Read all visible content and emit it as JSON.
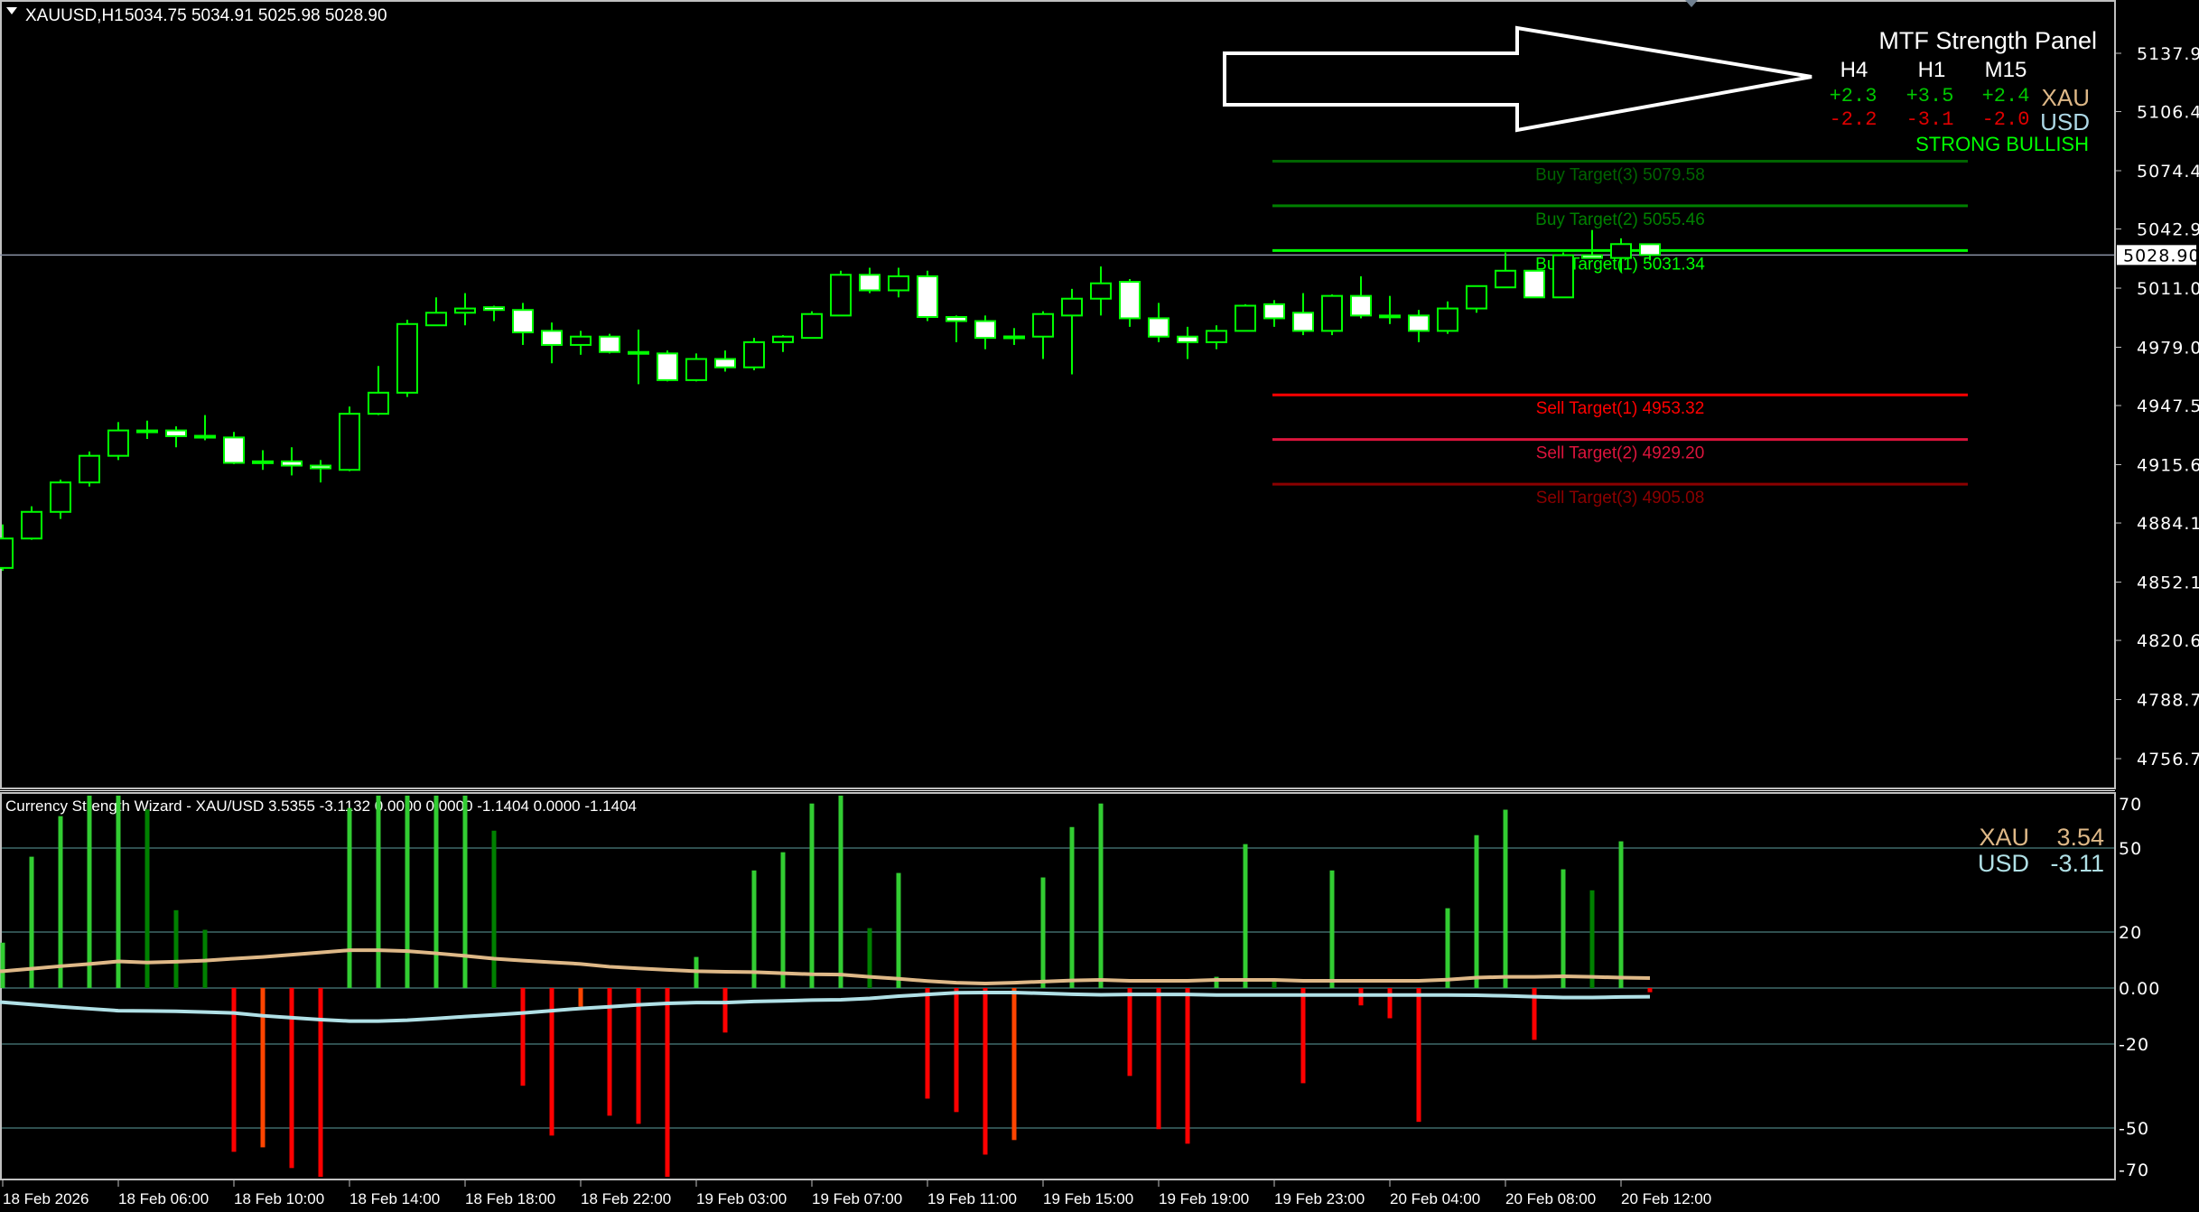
{
  "header": {
    "symbol": "XAUUSD,H1",
    "ohlc_text": "5034.75 5034.91 5025.98 5028.90"
  },
  "mtf_panel": {
    "title": "MTF Strength Panel",
    "timeframes": [
      "H4",
      "H1",
      "M15"
    ],
    "xau_label": "XAU",
    "usd_label": "USD",
    "xau_values": [
      "+2.3",
      "+3.5",
      "+2.4"
    ],
    "usd_values": [
      "-2.2",
      "-3.1",
      "-2.0"
    ],
    "verdict": "STRONG BULLISH",
    "colors": {
      "positive": "#00c800",
      "negative": "#e00000",
      "xau": "#deb887",
      "usd": "#add8e6",
      "verdict": "#00ff00"
    }
  },
  "targets": [
    {
      "label": "Buy Target(3) 5079.58",
      "price": 5079.58,
      "color": "#006400"
    },
    {
      "label": "Buy Target(2) 5055.46",
      "price": 5055.46,
      "color": "#008000"
    },
    {
      "label": "Buy Target(1) 5031.34",
      "price": 5031.34,
      "color": "#00ff00"
    },
    {
      "label": "Sell Target(1) 4953.32",
      "price": 4953.32,
      "color": "#ff0000"
    },
    {
      "label": "Sell Target(2) 4929.20",
      "price": 4929.2,
      "color": "#dc143c"
    },
    {
      "label": "Sell Target(3) 4905.08",
      "price": 4905.08,
      "color": "#8b0000"
    }
  ],
  "price_axis": {
    "ticks": [
      "5137.90",
      "5106.40",
      "5074.45",
      "5042.95",
      "5011.00",
      "4979.05",
      "4947.55",
      "4915.60",
      "4884.10",
      "4852.15",
      "4820.65",
      "4788.70",
      "4756.75"
    ],
    "current_price": "5028.90"
  },
  "time_axis": {
    "labels": [
      "18 Feb 2026",
      "18 Feb 06:00",
      "18 Feb 10:00",
      "18 Feb 14:00",
      "18 Feb 18:00",
      "18 Feb 22:00",
      "19 Feb 03:00",
      "19 Feb 07:00",
      "19 Feb 11:00",
      "19 Feb 15:00",
      "19 Feb 19:00",
      "19 Feb 23:00",
      "20 Feb 04:00",
      "20 Feb 08:00",
      "20 Feb 12:00"
    ]
  },
  "indicator": {
    "title": "Currency Strength Wizard - XAU/USD 3.5355 -3.1132 0.0000 0.0000 -1.1404 0.0000 -1.1404",
    "xau_label": "XAU",
    "xau_value": "3.54",
    "usd_label": "USD",
    "usd_value": "-3.11",
    "scale_labels": [
      "70",
      "50",
      "20",
      "0.00",
      "-20",
      "-50",
      "-70"
    ]
  },
  "chart_data": [
    {
      "type": "candlestick",
      "title": "XAUUSD,H1",
      "ylim": [
        4740,
        5150
      ],
      "bull_color": "#000000",
      "bear_color": "#ffffff",
      "outline_color": "#00ff00",
      "ohlc": [
        [
          4859.8,
          4883.3,
          4858.3,
          4875.7
        ],
        [
          4875.7,
          4893.1,
          4875.0,
          4890.1
        ],
        [
          4890.1,
          4907.5,
          4886.3,
          4906.0
        ],
        [
          4906.0,
          4922.7,
          4903.8,
          4920.4
        ],
        [
          4920.4,
          4938.6,
          4918.1,
          4934.1
        ],
        [
          4933.3,
          4939.4,
          4929.5,
          4934.1
        ],
        [
          4934.1,
          4936.3,
          4925.0,
          4931.0
        ],
        [
          4931.0,
          4942.4,
          4928.8,
          4931.2
        ],
        [
          4930.3,
          4933.3,
          4915.9,
          4916.6
        ],
        [
          4917.4,
          4923.4,
          4912.8,
          4917.2
        ],
        [
          4917.4,
          4925.0,
          4909.8,
          4915.1
        ],
        [
          4915.1,
          4918.1,
          4906.0,
          4913.6
        ],
        [
          4912.8,
          4947.0,
          4912.1,
          4943.1
        ],
        [
          4943.1,
          4968.9,
          4942.4,
          4954.5
        ],
        [
          4954.5,
          4993.9,
          4952.2,
          4991.6
        ],
        [
          4990.9,
          5006.0,
          4990.9,
          4997.7
        ],
        [
          4997.7,
          5008.3,
          4990.9,
          5000.0
        ],
        [
          5000.7,
          5001.5,
          4993.2,
          4999.2
        ],
        [
          4999.2,
          5003.0,
          4980.3,
          4987.1
        ],
        [
          4987.9,
          4992.4,
          4970.4,
          4980.3
        ],
        [
          4980.3,
          4987.9,
          4975.0,
          4984.8
        ],
        [
          4984.8,
          4986.3,
          4975.7,
          4976.5
        ],
        [
          4976.5,
          4988.6,
          4959.1,
          4976.4
        ],
        [
          4975.7,
          4977.3,
          4960.6,
          4961.3
        ],
        [
          4961.3,
          4975.7,
          4960.6,
          4972.7
        ],
        [
          4972.7,
          4977.3,
          4965.9,
          4968.2
        ],
        [
          4968.2,
          4984.1,
          4966.6,
          4981.8
        ],
        [
          4981.8,
          4985.6,
          4976.5,
          4984.8
        ],
        [
          4984.1,
          4998.5,
          4984.1,
          4997.0
        ],
        [
          4996.2,
          5020.4,
          4996.2,
          5018.2
        ],
        [
          5018.2,
          5022.0,
          5008.3,
          5009.8
        ],
        [
          5009.8,
          5022.0,
          5006.0,
          5017.4
        ],
        [
          5017.4,
          5020.4,
          4993.2,
          4995.4
        ],
        [
          4995.4,
          4996.2,
          4981.8,
          4993.2
        ],
        [
          4993.2,
          4996.2,
          4978.0,
          4984.1
        ],
        [
          4984.8,
          4989.4,
          4980.3,
          4984.9
        ],
        [
          4984.8,
          4998.5,
          4972.7,
          4997.0
        ],
        [
          4996.2,
          5010.6,
          4964.4,
          5005.3
        ],
        [
          5005.3,
          5022.7,
          4996.2,
          5013.6
        ],
        [
          5014.4,
          5015.9,
          4990.1,
          4994.7
        ],
        [
          4994.7,
          5003.0,
          4981.8,
          4984.8
        ],
        [
          4984.8,
          4990.1,
          4972.7,
          4981.8
        ],
        [
          4981.8,
          4990.9,
          4978.0,
          4987.9
        ],
        [
          4987.9,
          5002.3,
          4987.9,
          5001.5
        ],
        [
          5002.3,
          5004.5,
          4990.1,
          4994.7
        ],
        [
          4997.7,
          5008.3,
          4985.6,
          4987.9
        ],
        [
          4987.9,
          5007.6,
          4985.6,
          5006.8
        ],
        [
          5006.8,
          5017.4,
          4994.7,
          4996.2
        ],
        [
          4996.2,
          5006.8,
          4991.6,
          4996.1
        ],
        [
          4996.2,
          4999.2,
          4981.8,
          4987.9
        ],
        [
          4987.9,
          5003.8,
          4986.3,
          5000.0
        ],
        [
          5000.0,
          5012.1,
          4997.7,
          5012.1
        ],
        [
          5011.4,
          5030.3,
          5011.4,
          5020.4
        ],
        [
          5020.4,
          5020.4,
          5006.0,
          5006.0
        ],
        [
          5006.0,
          5030.3,
          5006.0,
          5028.8
        ],
        [
          5028.8,
          5042.4,
          5027.3,
          5027.3
        ],
        [
          5027.3,
          5037.9,
          5019.7,
          5034.8
        ],
        [
          5034.75,
          5034.91,
          5025.98,
          5028.9
        ]
      ]
    },
    {
      "type": "bar",
      "title": "Currency Strength Wizard - XAU/USD",
      "ylim": [
        -70,
        70
      ],
      "grid_levels": [
        50,
        20,
        0,
        -20,
        -50
      ],
      "colors": {
        "G": "#32cd32",
        "g": "#008000",
        "R": "#ff0000",
        "O": "#ff4500"
      },
      "histogram": [
        16.2,
        46.9,
        61.4,
        70,
        72,
        63.8,
        27.8,
        20.8,
        -58.5,
        -56.9,
        -64.3,
        -67.5,
        64.3,
        68.8,
        72,
        72,
        71,
        56.2,
        -34.9,
        -52.7,
        -6.6,
        -45.6,
        -48.5,
        -70,
        11.1,
        -15.9,
        42,
        48.5,
        65.9,
        72,
        21.4,
        41.1,
        -39.5,
        -44.3,
        -59.5,
        -54.3,
        39.5,
        57.5,
        65.9,
        -31.4,
        -50.4,
        -55.6,
        4,
        51.4,
        3.4,
        -34,
        42,
        -6.2,
        -10.8,
        -47.8,
        28.5,
        54.6,
        63.7,
        -18.5,
        42.4,
        34.9,
        52.4,
        -1.5
      ],
      "histogram_color": [
        "G",
        "G",
        "G",
        "G",
        "G",
        "g",
        "g",
        "g",
        "R",
        "O",
        "R",
        "R",
        "G",
        "G",
        "G",
        "G",
        "G",
        "g",
        "R",
        "R",
        "O",
        "R",
        "R",
        "R",
        "G",
        "R",
        "G",
        "G",
        "G",
        "G",
        "g",
        "G",
        "R",
        "R",
        "R",
        "O",
        "G",
        "G",
        "G",
        "R",
        "R",
        "R",
        "G",
        "G",
        "g",
        "R",
        "G",
        "R",
        "R",
        "R",
        "G",
        "G",
        "G",
        "R",
        "G",
        "g",
        "G",
        "R"
      ],
      "series": [
        {
          "name": "XAU",
          "color": "#deb887",
          "values": [
            6.0,
            6.9,
            7.8,
            8.6,
            9.5,
            9.1,
            9.4,
            9.8,
            10.5,
            11.1,
            11.9,
            12.7,
            13.5,
            13.5,
            13.2,
            12.4,
            11.5,
            10.5,
            9.8,
            9.2,
            8.6,
            7.6,
            7.0,
            6.5,
            6.0,
            5.8,
            5.7,
            5.3,
            4.9,
            4.8,
            4.0,
            3.3,
            2.5,
            1.9,
            1.6,
            1.9,
            2.3,
            2.7,
            2.9,
            2.6,
            2.6,
            2.6,
            2.9,
            2.9,
            2.9,
            2.6,
            2.6,
            2.6,
            2.6,
            2.6,
            3.0,
            3.7,
            4.0,
            4.0,
            4.2,
            4.0,
            3.7,
            3.54
          ]
        },
        {
          "name": "USD",
          "color": "#b0e0e6",
          "values": [
            -5.1,
            -5.9,
            -6.7,
            -7.4,
            -8.1,
            -8.2,
            -8.3,
            -8.6,
            -8.9,
            -9.9,
            -10.6,
            -11.3,
            -11.8,
            -11.8,
            -11.5,
            -10.9,
            -10.2,
            -9.6,
            -8.9,
            -8.1,
            -7.3,
            -6.7,
            -6.0,
            -5.5,
            -5.2,
            -5.2,
            -4.8,
            -4.6,
            -4.3,
            -4.2,
            -3.7,
            -2.9,
            -2.3,
            -1.7,
            -1.6,
            -1.6,
            -1.9,
            -2.2,
            -2.4,
            -2.3,
            -2.3,
            -2.3,
            -2.5,
            -2.5,
            -2.5,
            -2.5,
            -2.5,
            -2.5,
            -2.5,
            -2.5,
            -2.5,
            -2.6,
            -2.8,
            -3.1,
            -3.4,
            -3.4,
            -3.2,
            -3.11
          ]
        }
      ]
    }
  ]
}
